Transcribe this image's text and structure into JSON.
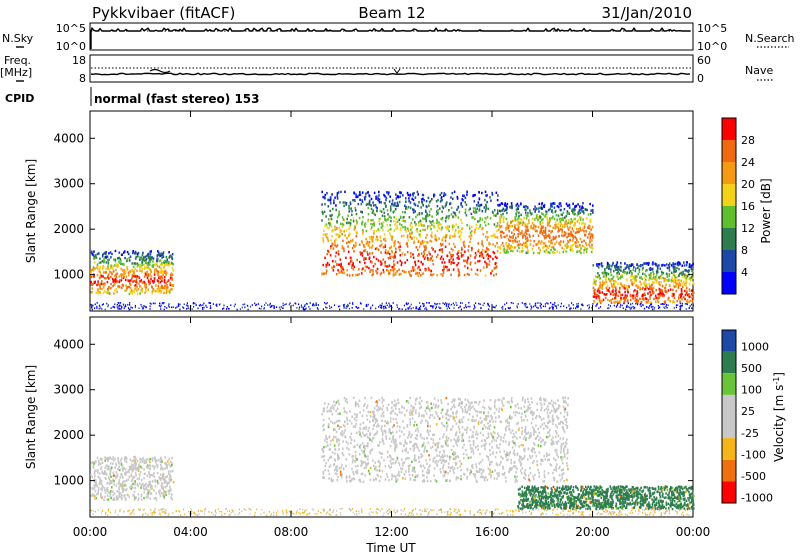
{
  "header": {
    "station": "Pykkvibaer (fitACF)",
    "beam": "Beam 12",
    "date": "31/Jan/2010"
  },
  "aux": {
    "nsky_label": "N.Sky",
    "nsky_ticks": [
      "10^5",
      "10^0"
    ],
    "nsearch_label": "N.Search",
    "nsearch_ticks": [
      "10^5",
      "10^0"
    ],
    "freq_label": "Freq.",
    "freq_unit": "[MHz]",
    "freq_ticks": [
      "18",
      "8"
    ],
    "nave_label": "Nave",
    "nave_ticks": [
      "60",
      "0"
    ],
    "cpid_label": "CPID",
    "cpid_text": "normal (fast stereo) 153"
  },
  "chart_data": [
    {
      "type": "heatmap",
      "panel": "power",
      "ylabel": "Slant Range [km]",
      "xlabel": "",
      "yticks": [
        1000,
        2000,
        3000,
        4000
      ],
      "ylim": [
        200,
        4600
      ],
      "xlim": [
        0,
        24
      ],
      "colorbar": {
        "label": "Power [dB]",
        "ticks": [
          "4",
          "8",
          "12",
          "16",
          "20",
          "24",
          "28"
        ],
        "colors": [
          "#0000ff",
          "#1c48a8",
          "#2e7d4e",
          "#5fbf2f",
          "#f4d21a",
          "#f59a12",
          "#f06a10",
          "#ff0000"
        ]
      },
      "scatter_bands": [
        {
          "t0": 0.0,
          "t1": 3.3,
          "upper_km": 1550,
          "lower_km": 600,
          "core_km": 900,
          "peak": "red"
        },
        {
          "t0": 9.2,
          "t1": 16.2,
          "upper_km": 2850,
          "lower_km": 1000,
          "core_km": 1350,
          "peak": "red"
        },
        {
          "t0": 16.2,
          "t1": 20.0,
          "upper_km": 2600,
          "lower_km": 1500,
          "core_km": 1900,
          "peak": "orange"
        },
        {
          "t0": 20.0,
          "t1": 24.0,
          "upper_km": 1300,
          "lower_km": 400,
          "core_km": 600,
          "peak": "red"
        }
      ]
    },
    {
      "type": "heatmap",
      "panel": "velocity",
      "ylabel": "Slant Range [km]",
      "xlabel": "Time UT",
      "xticks": [
        "00:00",
        "04:00",
        "08:00",
        "12:00",
        "16:00",
        "20:00",
        "00:00"
      ],
      "yticks": [
        1000,
        2000,
        3000,
        4000
      ],
      "ylim": [
        200,
        4600
      ],
      "xlim": [
        0,
        24
      ],
      "colorbar": {
        "label": "Velocity [m s^-1]",
        "ticks": [
          "1000",
          "500",
          "100",
          "25",
          "-25",
          "-100",
          "-500",
          "-1000"
        ],
        "colors": [
          "#1c48a8",
          "#2e7d4e",
          "#6ac43a",
          "#c8c8c8",
          "#c8c8c8",
          "#f4b41a",
          "#f07010",
          "#ff0000"
        ]
      },
      "scatter_bands": [
        {
          "t0": 0.0,
          "t1": 3.3,
          "upper_km": 1550,
          "lower_km": 600,
          "dominant": "grey"
        },
        {
          "t0": 9.2,
          "t1": 19.0,
          "upper_km": 2850,
          "lower_km": 1000,
          "dominant": "grey"
        },
        {
          "t0": 17.0,
          "t1": 24.0,
          "upper_km": 900,
          "lower_km": 400,
          "dominant": "green"
        }
      ]
    }
  ]
}
